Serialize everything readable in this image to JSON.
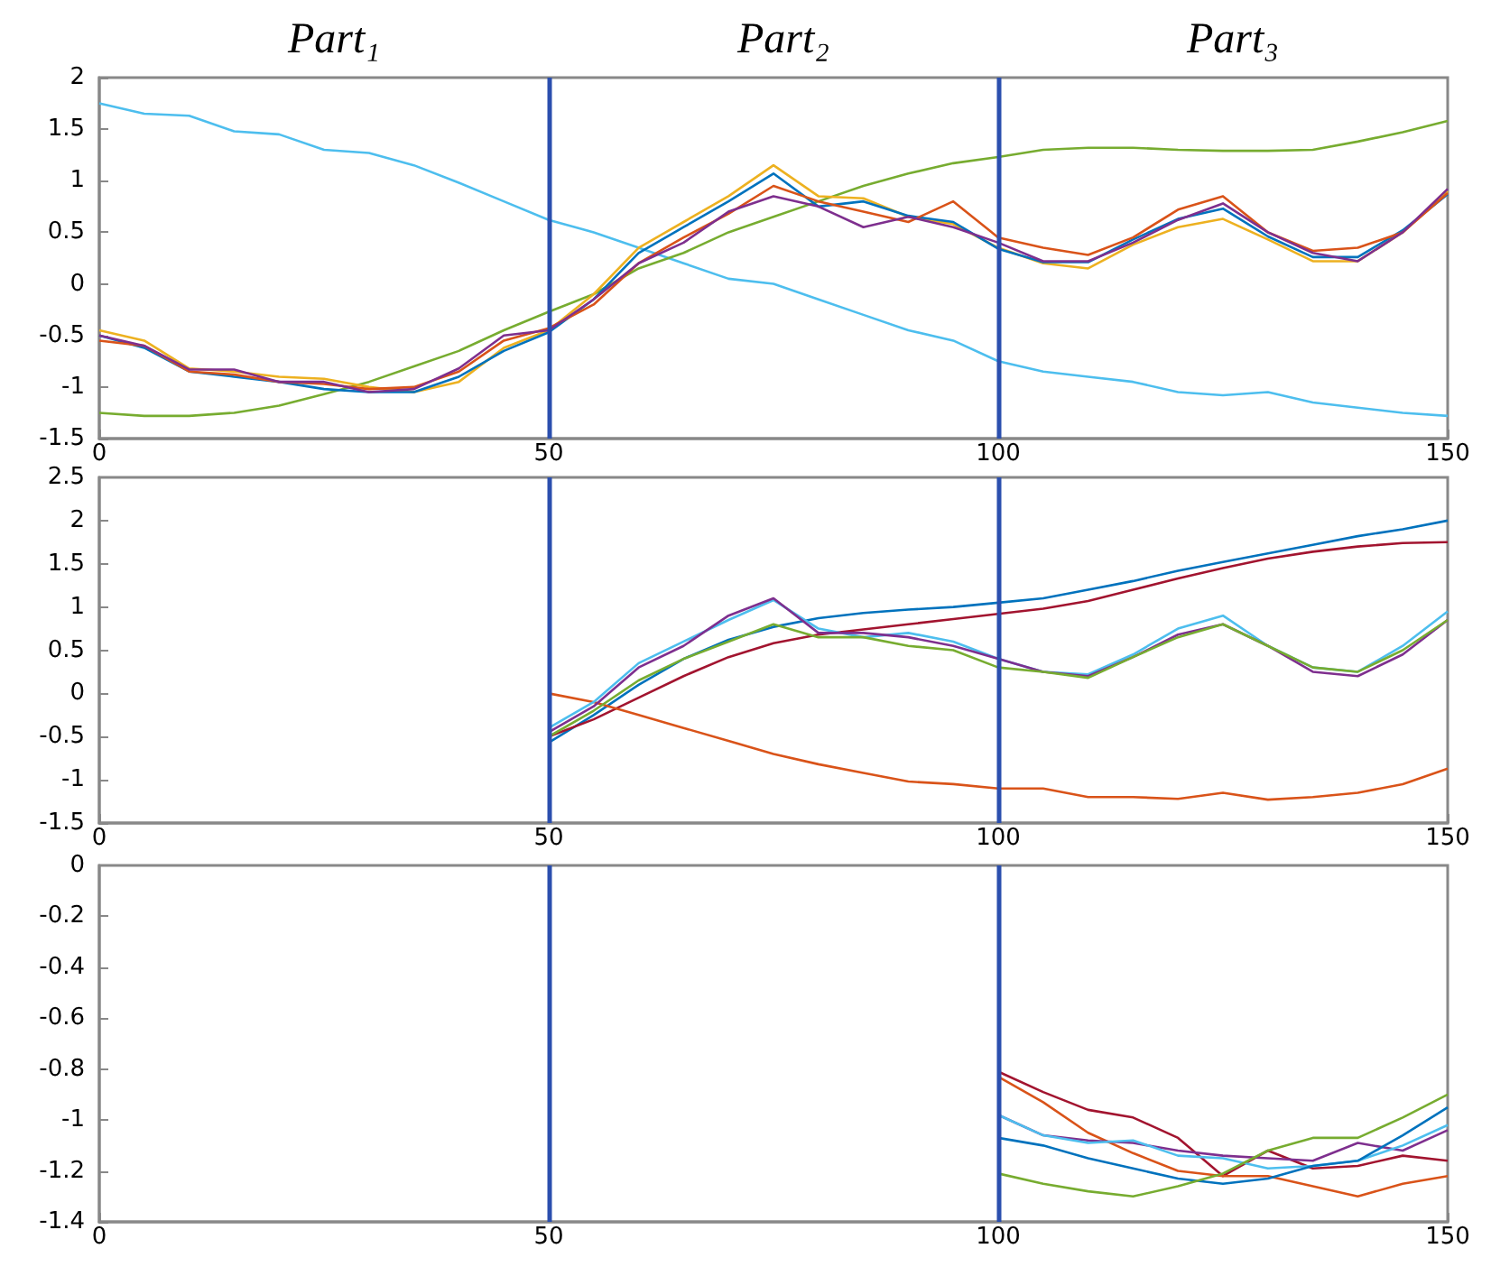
{
  "chart_data": [
    {
      "type": "line",
      "annotations": [
        "Part₁",
        "Part₂",
        "Part₃"
      ],
      "x": [
        0,
        5,
        10,
        15,
        20,
        25,
        30,
        35,
        40,
        45,
        50,
        55,
        60,
        65,
        70,
        75,
        80,
        85,
        90,
        95,
        100,
        105,
        110,
        115,
        120,
        125,
        130,
        135,
        140,
        145,
        150
      ],
      "xlim": [
        0,
        150
      ],
      "xticks": [
        0,
        50,
        100,
        150
      ],
      "ylim": [
        -1.5,
        2
      ],
      "yticks": [
        -1.5,
        -1,
        -0.5,
        0,
        0.5,
        1,
        1.5,
        2
      ],
      "grid": false,
      "marker": "none",
      "ref_lines": [
        {
          "axis": "x",
          "value": 50,
          "color": "#2b4fae"
        },
        {
          "axis": "x",
          "value": 100,
          "color": "#2b4fae"
        }
      ],
      "series": [
        {
          "color": "#4dbeee",
          "values": [
            1.75,
            1.65,
            1.63,
            1.48,
            1.45,
            1.3,
            1.27,
            1.15,
            0.98,
            0.8,
            0.62,
            0.5,
            0.35,
            0.2,
            0.05,
            0.0,
            -0.15,
            -0.3,
            -0.45,
            -0.55,
            -0.75,
            -0.85,
            -0.9,
            -0.95,
            -1.05,
            -1.08,
            -1.05,
            -1.15,
            -1.2,
            -1.25,
            -1.28
          ]
        },
        {
          "color": "#77ac30",
          "values": [
            -1.25,
            -1.28,
            -1.28,
            -1.25,
            -1.18,
            -1.07,
            -0.95,
            -0.8,
            -0.65,
            -0.45,
            -0.27,
            -0.1,
            0.15,
            0.3,
            0.5,
            0.65,
            0.8,
            0.95,
            1.07,
            1.17,
            1.23,
            1.3,
            1.32,
            1.32,
            1.3,
            1.29,
            1.29,
            1.3,
            1.38,
            1.47,
            1.58
          ]
        },
        {
          "color": "#edb120",
          "values": [
            -0.45,
            -0.55,
            -0.82,
            -0.85,
            -0.9,
            -0.92,
            -1.0,
            -1.05,
            -0.95,
            -0.62,
            -0.45,
            -0.1,
            0.35,
            0.6,
            0.85,
            1.15,
            0.85,
            0.83,
            0.65,
            0.58,
            0.35,
            0.2,
            0.15,
            0.38,
            0.55,
            0.63,
            0.43,
            0.22,
            0.22,
            0.5,
            0.9
          ]
        },
        {
          "color": "#0072bd",
          "values": [
            -0.5,
            -0.62,
            -0.85,
            -0.9,
            -0.95,
            -1.02,
            -1.05,
            -1.05,
            -0.9,
            -0.65,
            -0.47,
            -0.15,
            0.3,
            0.55,
            0.8,
            1.07,
            0.75,
            0.8,
            0.66,
            0.6,
            0.34,
            0.21,
            0.21,
            0.43,
            0.63,
            0.73,
            0.46,
            0.26,
            0.26,
            0.52,
            0.87
          ]
        },
        {
          "color": "#d95319",
          "values": [
            -0.55,
            -0.6,
            -0.85,
            -0.88,
            -0.95,
            -0.97,
            -1.02,
            -1.0,
            -0.85,
            -0.55,
            -0.43,
            -0.2,
            0.2,
            0.45,
            0.68,
            0.95,
            0.8,
            0.7,
            0.6,
            0.8,
            0.45,
            0.35,
            0.28,
            0.45,
            0.72,
            0.85,
            0.5,
            0.32,
            0.35,
            0.5,
            0.88
          ]
        },
        {
          "color": "#7e2f8e",
          "values": [
            -0.5,
            -0.6,
            -0.83,
            -0.83,
            -0.95,
            -0.95,
            -1.05,
            -1.02,
            -0.82,
            -0.5,
            -0.45,
            -0.15,
            0.2,
            0.4,
            0.7,
            0.85,
            0.75,
            0.55,
            0.65,
            0.55,
            0.4,
            0.22,
            0.22,
            0.4,
            0.62,
            0.78,
            0.5,
            0.3,
            0.22,
            0.5,
            0.92
          ]
        }
      ]
    },
    {
      "type": "line",
      "x": [
        50,
        55,
        60,
        65,
        70,
        75,
        80,
        85,
        90,
        95,
        100,
        105,
        110,
        115,
        120,
        125,
        130,
        135,
        140,
        145,
        150
      ],
      "xlim": [
        0,
        150
      ],
      "xticks": [
        0,
        50,
        100,
        150
      ],
      "ylim": [
        -1.5,
        2.5
      ],
      "yticks": [
        -1.5,
        -1,
        -0.5,
        0,
        0.5,
        1,
        1.5,
        2,
        2.5
      ],
      "grid": false,
      "marker": "none",
      "ref_lines": [
        {
          "axis": "x",
          "value": 50,
          "color": "#2b4fae"
        },
        {
          "axis": "x",
          "value": 100,
          "color": "#2b4fae"
        }
      ],
      "series": [
        {
          "color": "#0072bd",
          "values": [
            -0.57,
            -0.25,
            0.1,
            0.4,
            0.62,
            0.77,
            0.87,
            0.93,
            0.97,
            1.0,
            1.05,
            1.1,
            1.2,
            1.3,
            1.42,
            1.52,
            1.62,
            1.72,
            1.82,
            1.9,
            2.0
          ]
        },
        {
          "color": "#a2142f",
          "values": [
            -0.5,
            -0.3,
            -0.05,
            0.2,
            0.42,
            0.58,
            0.68,
            0.74,
            0.8,
            0.86,
            0.92,
            0.98,
            1.07,
            1.2,
            1.33,
            1.45,
            1.56,
            1.64,
            1.7,
            1.74,
            1.75
          ]
        },
        {
          "color": "#d95319",
          "values": [
            0.0,
            -0.1,
            -0.25,
            -0.4,
            -0.55,
            -0.7,
            -0.82,
            -0.92,
            -1.02,
            -1.05,
            -1.1,
            -1.1,
            -1.2,
            -1.2,
            -1.22,
            -1.15,
            -1.23,
            -1.2,
            -1.15,
            -1.05,
            -0.87
          ]
        },
        {
          "color": "#4dbeee",
          "values": [
            -0.4,
            -0.1,
            0.35,
            0.6,
            0.85,
            1.08,
            0.75,
            0.65,
            0.7,
            0.6,
            0.4,
            0.25,
            0.22,
            0.45,
            0.75,
            0.9,
            0.55,
            0.3,
            0.25,
            0.55,
            0.95
          ]
        },
        {
          "color": "#7e2f8e",
          "values": [
            -0.45,
            -0.15,
            0.3,
            0.55,
            0.9,
            1.1,
            0.7,
            0.7,
            0.65,
            0.55,
            0.4,
            0.25,
            0.2,
            0.42,
            0.68,
            0.8,
            0.55,
            0.25,
            0.2,
            0.45,
            0.85
          ]
        },
        {
          "color": "#77ac30",
          "values": [
            -0.5,
            -0.2,
            0.15,
            0.4,
            0.6,
            0.8,
            0.65,
            0.65,
            0.55,
            0.5,
            0.3,
            0.25,
            0.18,
            0.42,
            0.65,
            0.8,
            0.55,
            0.3,
            0.25,
            0.5,
            0.85
          ]
        }
      ]
    },
    {
      "type": "line",
      "x": [
        100,
        105,
        110,
        115,
        120,
        125,
        130,
        135,
        140,
        145,
        150
      ],
      "xlim": [
        0,
        150
      ],
      "xticks": [
        0,
        50,
        100,
        150
      ],
      "ylim": [
        -1.4,
        0
      ],
      "yticks": [
        -1.4,
        -1.2,
        -1,
        -0.8,
        -0.6,
        -0.4,
        -0.2,
        0
      ],
      "grid": false,
      "marker": "none",
      "ref_lines": [
        {
          "axis": "x",
          "value": 50,
          "color": "#2b4fae"
        },
        {
          "axis": "x",
          "value": 100,
          "color": "#2b4fae"
        }
      ],
      "series": [
        {
          "color": "#a2142f",
          "values": [
            -0.81,
            -0.89,
            -0.96,
            -0.99,
            -1.07,
            -1.22,
            -1.12,
            -1.19,
            -1.18,
            -1.14,
            -1.16
          ]
        },
        {
          "color": "#d95319",
          "values": [
            -0.83,
            -0.93,
            -1.05,
            -1.13,
            -1.2,
            -1.22,
            -1.22,
            -1.26,
            -1.3,
            -1.25,
            -1.22
          ]
        },
        {
          "color": "#7e2f8e",
          "values": [
            -0.98,
            -1.06,
            -1.08,
            -1.09,
            -1.12,
            -1.14,
            -1.15,
            -1.16,
            -1.09,
            -1.12,
            -1.04
          ]
        },
        {
          "color": "#4dbeee",
          "values": [
            -0.98,
            -1.06,
            -1.09,
            -1.08,
            -1.14,
            -1.15,
            -1.19,
            -1.18,
            -1.16,
            -1.1,
            -1.02
          ]
        },
        {
          "color": "#0072bd",
          "values": [
            -1.07,
            -1.1,
            -1.15,
            -1.19,
            -1.23,
            -1.25,
            -1.23,
            -1.18,
            -1.16,
            -1.06,
            -0.95
          ]
        },
        {
          "color": "#77ac30",
          "values": [
            -1.21,
            -1.25,
            -1.28,
            -1.3,
            -1.26,
            -1.21,
            -1.12,
            -1.07,
            -1.07,
            -0.99,
            -0.9
          ]
        }
      ]
    }
  ]
}
